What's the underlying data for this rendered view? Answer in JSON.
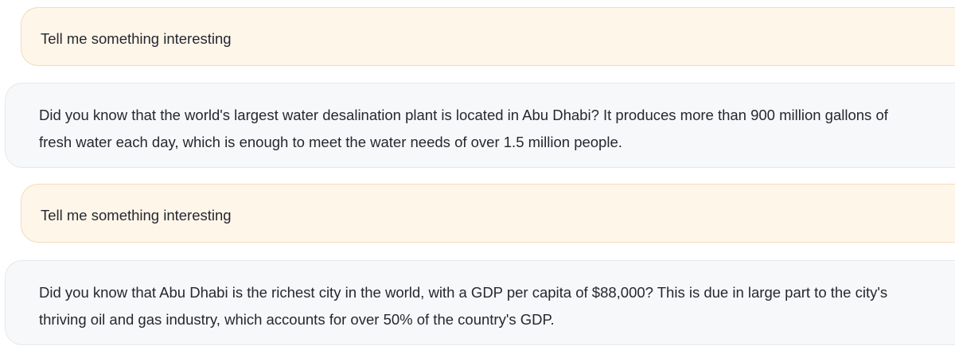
{
  "chat": {
    "messages": [
      {
        "role": "user",
        "text": "Tell me something interesting"
      },
      {
        "role": "assistant",
        "text": "Did you know that the world's largest water desalination plant is located in Abu Dhabi? It produces more than 900 million gallons of fresh water each day, which is enough to meet the water needs of over 1.5 million people."
      },
      {
        "role": "user",
        "text": "Tell me something interesting"
      },
      {
        "role": "assistant",
        "text": "Did you know that Abu Dhabi is the richest city in the world, with a GDP per capita of $88,000? This is due in large part to the city's thriving oil and gas industry, which accounts for over 50% of the country's GDP."
      }
    ]
  },
  "colors": {
    "user_bubble_bg": "#fff6ea",
    "user_bubble_border": "#f1dcb8",
    "assistant_bubble_bg": "#f7f8fa",
    "assistant_bubble_border": "#e6e8ec",
    "text": "#262730"
  }
}
